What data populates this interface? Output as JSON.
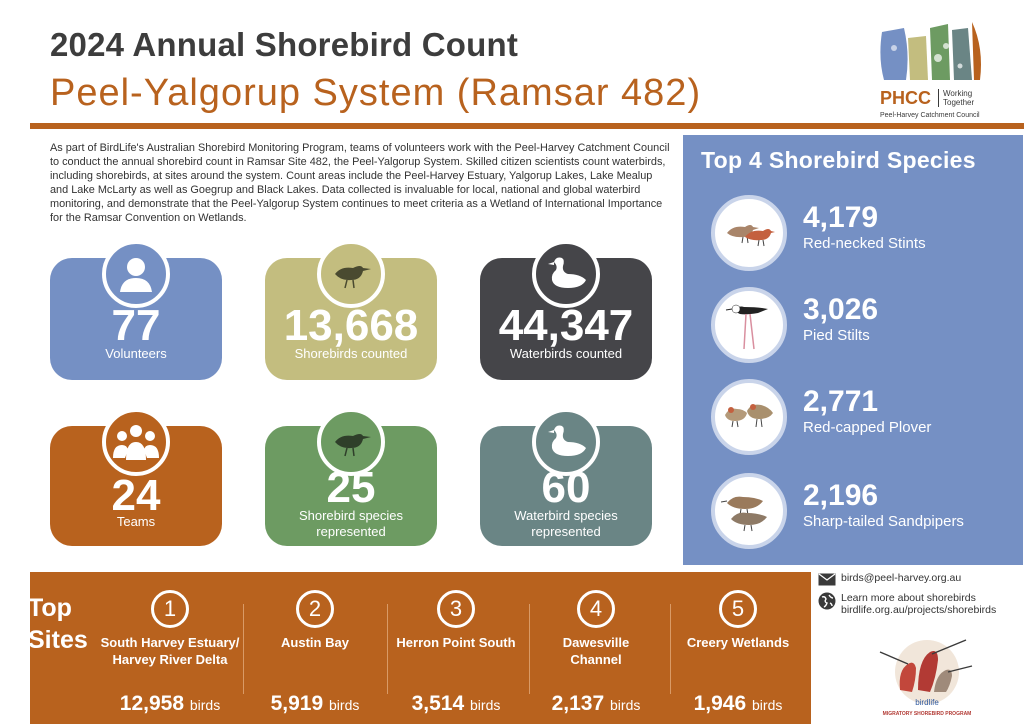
{
  "header": {
    "title": "2024 Annual Shorebird Count",
    "subtitle": "Peel-Yalgorup System (Ramsar 482)"
  },
  "logo": {
    "abbr": "PHCC",
    "tagline": "Working Together",
    "council": "Peel-Harvey Catchment Council"
  },
  "intro": "As part of BirdLife's Australian Shorebird Monitoring Program, teams of volunteers work with the Peel-Harvey Catchment Council to conduct the annual shorebird count in Ramsar Site 482, the Peel-Yalgorup System. Skilled citizen scientists count waterbirds, including shorebirds, at sites around the system. Count areas include the Peel-Harvey Estuary, Yalgorup Lakes, Lake Mealup and Lake McLarty as well as Goegrup and Black Lakes. Data collected is invaluable for local, national and global waterbird monitoring, and demonstrate that the Peel-Yalgorup System continues to meet criteria as a Wetland of International Importance for the Ramsar Convention on Wetlands.",
  "stats": [
    {
      "value": "77",
      "label": "Volunteers",
      "color": "#7590c4",
      "icon": "person-icon"
    },
    {
      "value": "13,668",
      "label": "Shorebirds counted",
      "color": "#c3bd7f",
      "icon": "shorebird-icon"
    },
    {
      "value": "44,347",
      "label": "Waterbirds counted",
      "color": "#454549",
      "icon": "waterbird-icon"
    },
    {
      "value": "24",
      "label": "Teams",
      "color": "#b8621e",
      "icon": "group-icon"
    },
    {
      "value": "25",
      "label": "Shorebird species represented",
      "color": "#6d9b62",
      "icon": "shorebird-icon"
    },
    {
      "value": "60",
      "label": "Waterbird species represented",
      "color": "#6a8585",
      "icon": "waterbird-icon"
    }
  ],
  "top_species": {
    "title": "Top 4 Shorebird Species",
    "items": [
      {
        "count": "4,179",
        "name": "Red-necked Stints"
      },
      {
        "count": "3,026",
        "name": "Pied Stilts"
      },
      {
        "count": "2,771",
        "name": "Red-capped Plover"
      },
      {
        "count": "2,196",
        "name": "Sharp-tailed Sandpipers"
      }
    ]
  },
  "top_sites": {
    "heading_line1": "Top",
    "heading_line2": "Sites",
    "unit": "birds",
    "items": [
      {
        "rank": "1",
        "name": "South Harvey Estuary/ Harvey River Delta",
        "count": "12,958"
      },
      {
        "rank": "2",
        "name": "Austin Bay",
        "count": "5,919"
      },
      {
        "rank": "3",
        "name": "Herron Point South",
        "count": "3,514"
      },
      {
        "rank": "4",
        "name": "Dawesville Channel",
        "count": "2,137"
      },
      {
        "rank": "5",
        "name": "Creery Wetlands",
        "count": "1,946"
      }
    ]
  },
  "contact": {
    "email": "birds@peel-harvey.org.au",
    "learn_more": "Learn more about shorebirds",
    "url": "birdlife.org.au/projects/shorebirds"
  },
  "birdlife_logo": {
    "brand": "birdlife",
    "program": "MIGRATORY SHOREBIRD PROGRAM"
  }
}
